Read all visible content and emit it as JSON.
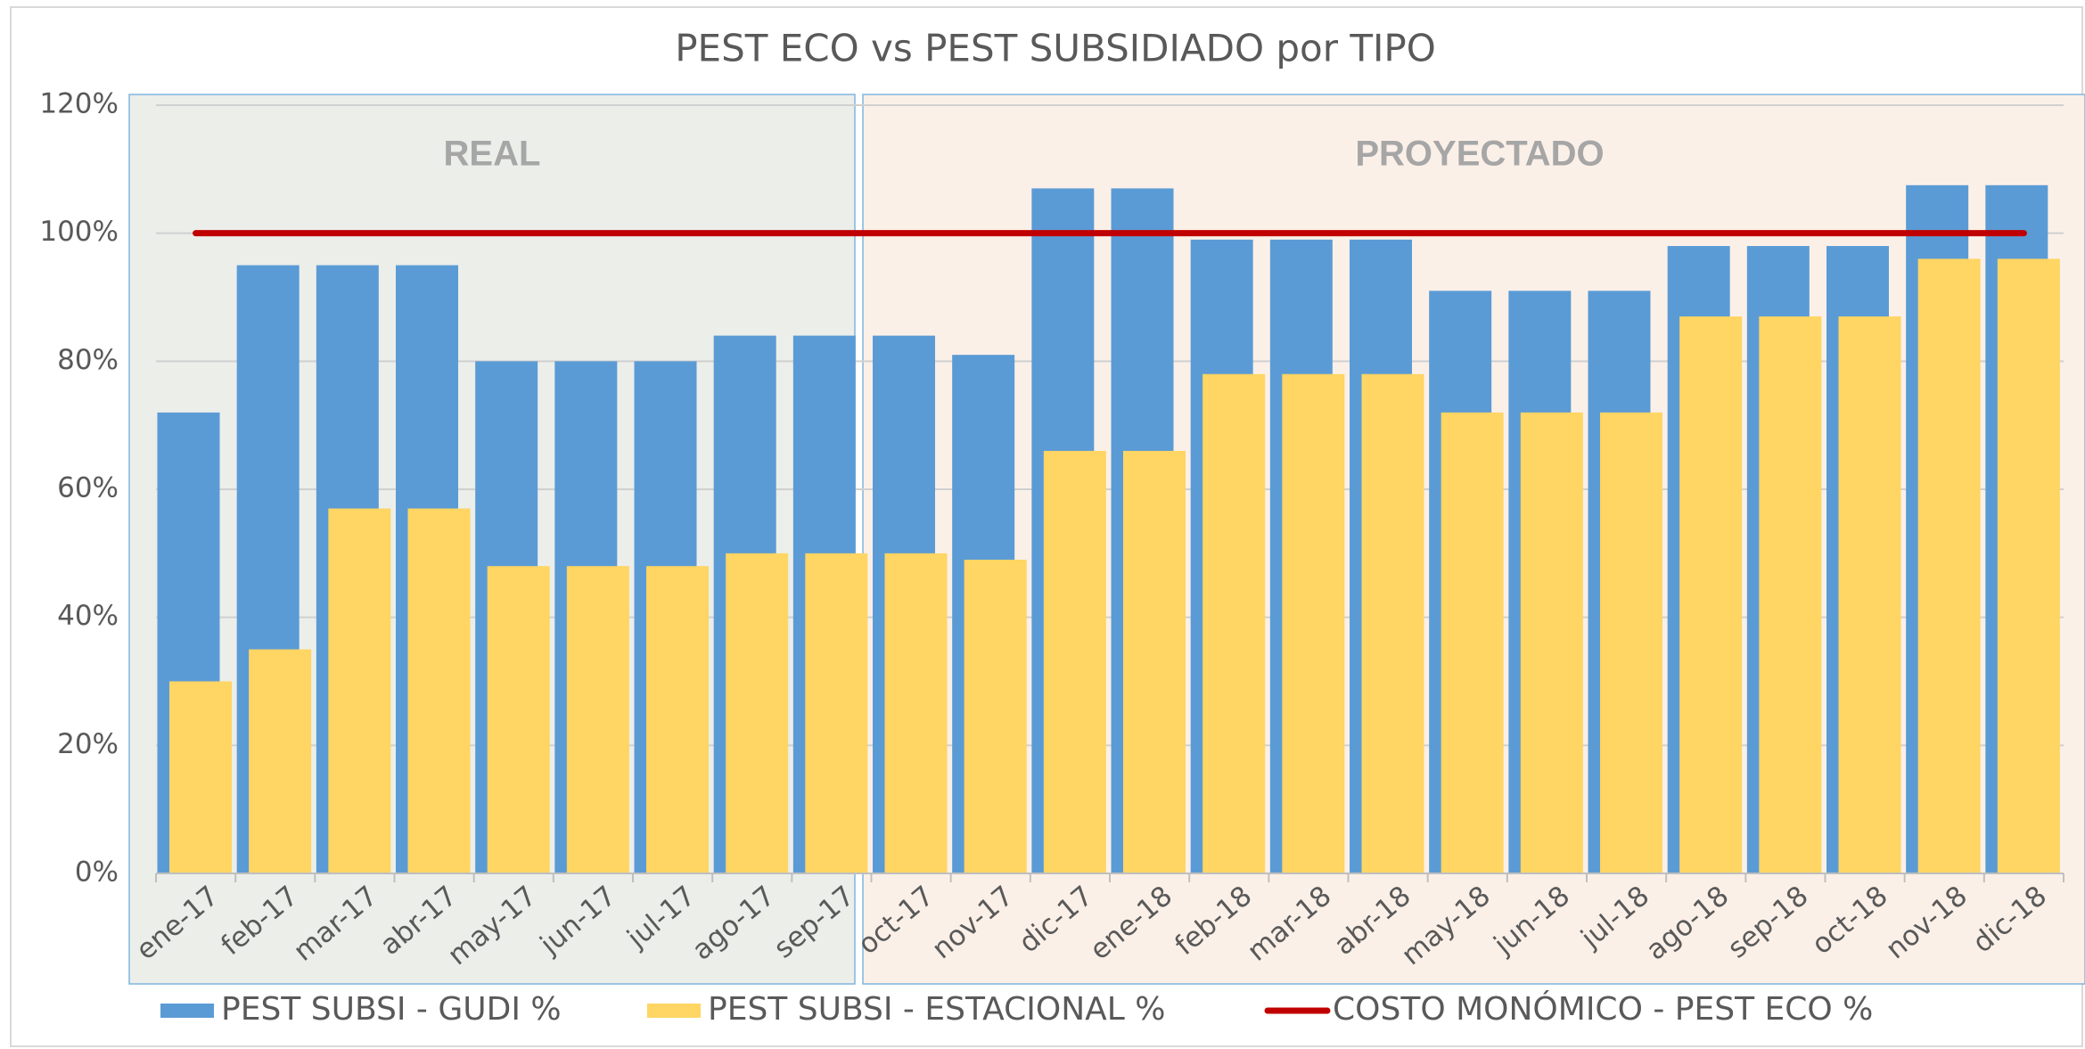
{
  "chart_data": {
    "type": "bar",
    "title": "PEST ECO vs PEST SUBSIDIADO por TIPO",
    "annotations": [
      "REAL",
      "PROYECTADO"
    ],
    "categories": [
      "ene-17",
      "feb-17",
      "mar-17",
      "abr-17",
      "may-17",
      "jun-17",
      "jul-17",
      "ago-17",
      "sep-17",
      "oct-17",
      "nov-17",
      "dic-17",
      "ene-18",
      "feb-18",
      "mar-18",
      "abr-18",
      "may-18",
      "jun-18",
      "jul-18",
      "ago-18",
      "sep-18",
      "oct-18",
      "nov-18",
      "dic-18"
    ],
    "series": [
      {
        "name": "PEST SUBSI - GUDI %",
        "type": "bar",
        "color": "#5b9bd5",
        "values": [
          72,
          95,
          95,
          95,
          80,
          80,
          80,
          84,
          84,
          84,
          81,
          107,
          107,
          99,
          99,
          99,
          91,
          91,
          91,
          98,
          98,
          98,
          107.5,
          107.5
        ]
      },
      {
        "name": "PEST SUBSI - ESTACIONAL %",
        "type": "bar",
        "color": "#ffd563",
        "values": [
          30,
          35,
          57,
          57,
          48,
          48,
          48,
          50,
          50,
          50,
          49,
          66,
          66,
          78,
          78,
          78,
          72,
          72,
          72,
          87,
          87,
          87,
          96,
          96
        ]
      },
      {
        "name": "COSTO MONÓMICO - PEST ECO %",
        "type": "line",
        "color": "#c00000",
        "values": [
          100,
          100,
          100,
          100,
          100,
          100,
          100,
          100,
          100,
          100,
          100,
          100,
          100,
          100,
          100,
          100,
          100,
          100,
          100,
          100,
          100,
          100,
          100,
          100
        ]
      }
    ],
    "ylim": [
      0,
      120
    ],
    "yticks": [
      {
        "value": 0,
        "label": "0%"
      },
      {
        "value": 20,
        "label": "20%"
      },
      {
        "value": 40,
        "label": "40%"
      },
      {
        "value": 60,
        "label": "60%"
      },
      {
        "value": 80,
        "label": "80%"
      },
      {
        "value": 100,
        "label": "100%"
      },
      {
        "value": 120,
        "label": "120%"
      }
    ],
    "grid": true,
    "legend": "bottom"
  }
}
